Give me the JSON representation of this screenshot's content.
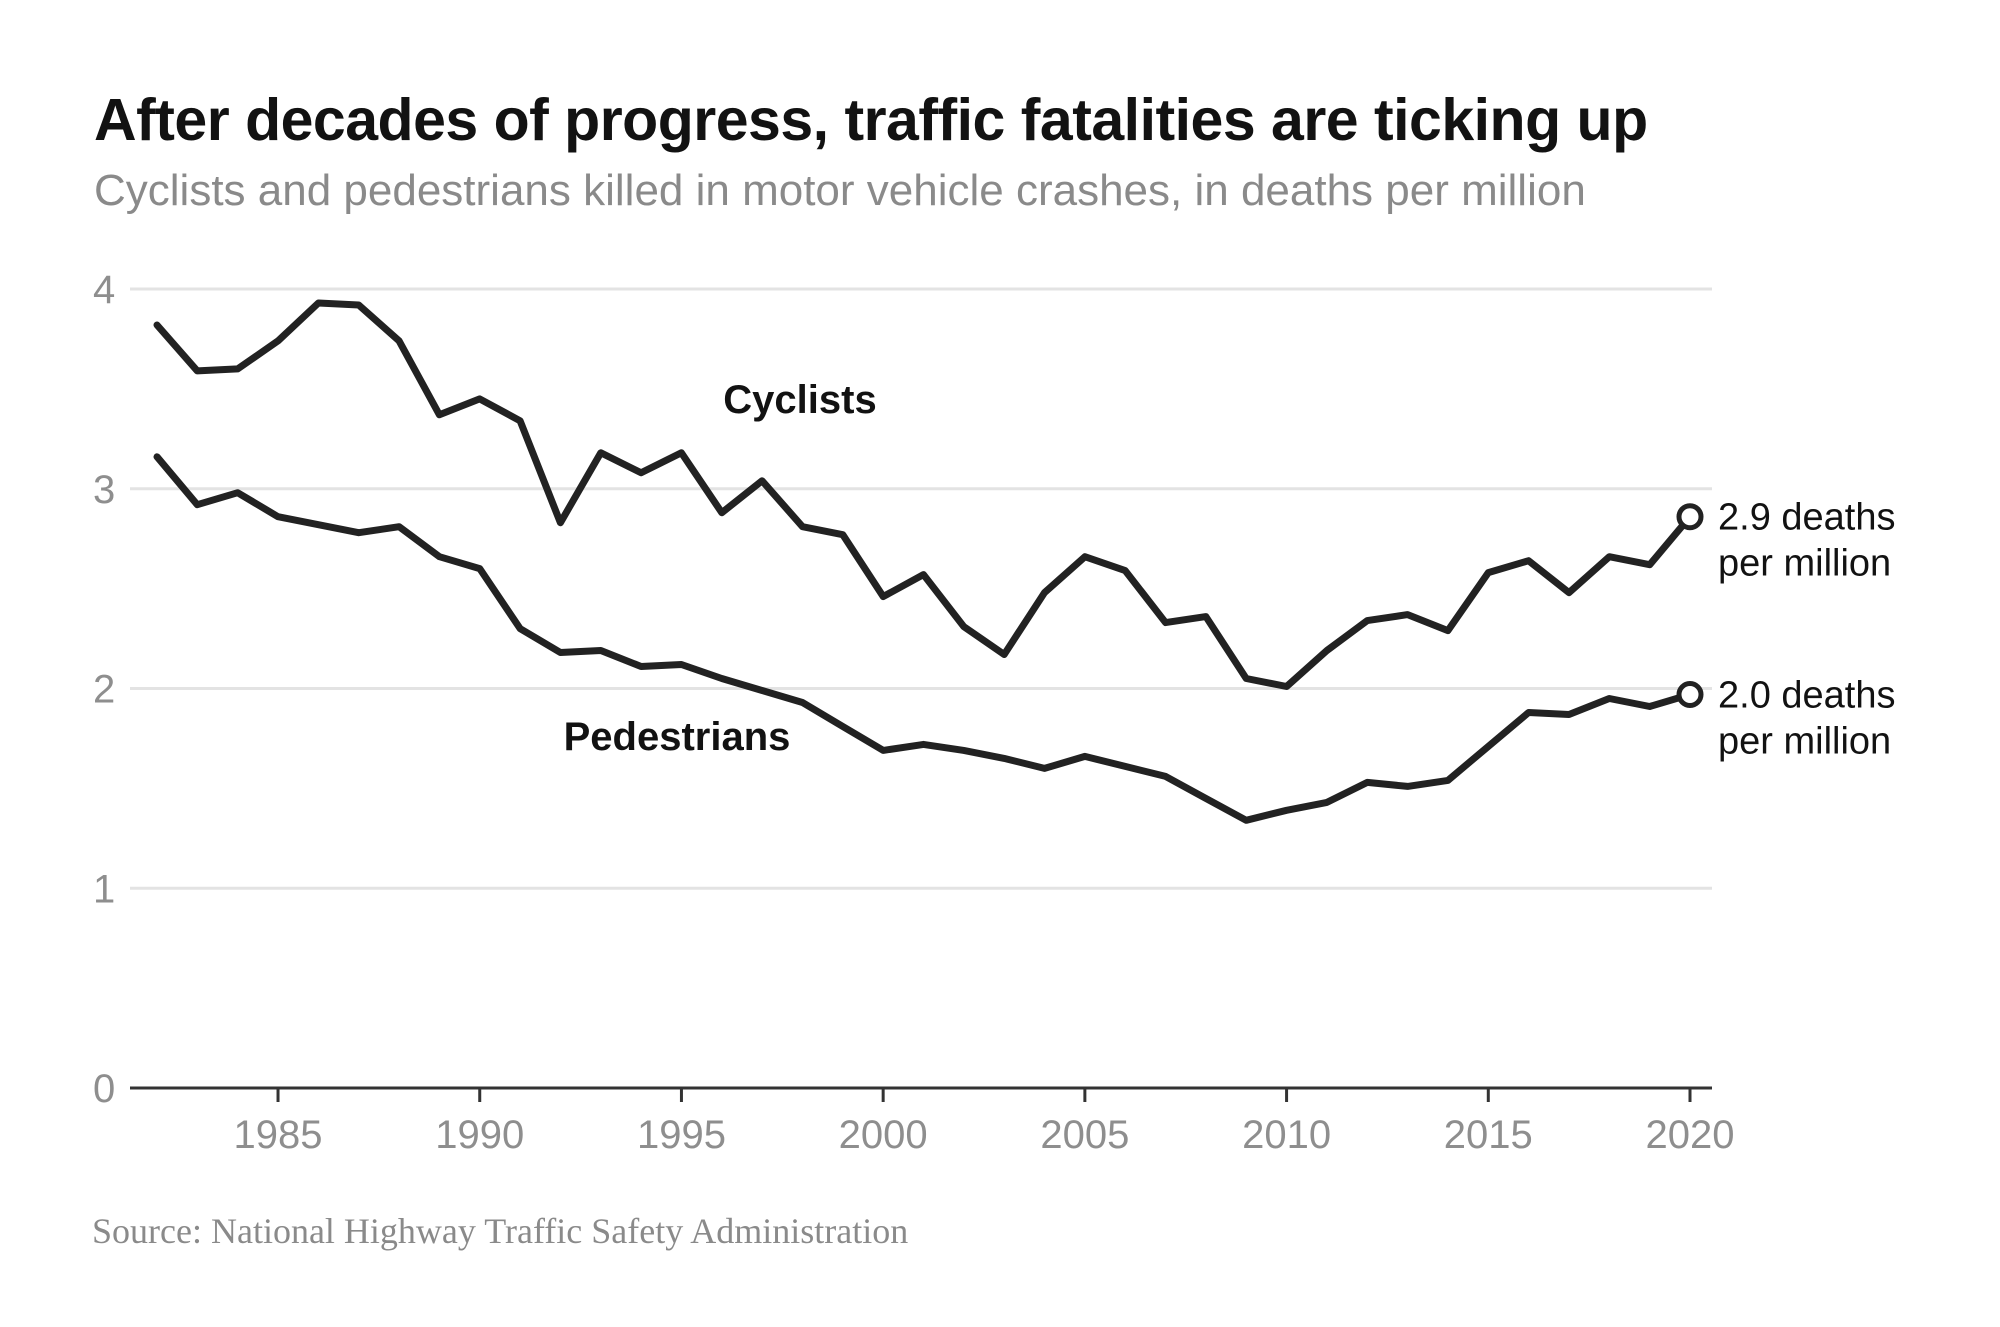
{
  "header": {
    "title": "After decades of progress, traffic fatalities are ticking up",
    "subtitle": "Cyclists and pedestrians killed in motor vehicle crashes, in deaths per million"
  },
  "footer": {
    "source": "Source: National Highway Traffic Safety Administration"
  },
  "colors": {
    "line": "#222222",
    "grid": "#e3e3e3",
    "axis": "#333333",
    "tick_text": "#8e8e8e"
  },
  "chart_data": {
    "type": "line",
    "title": "After decades of progress, traffic fatalities are ticking up",
    "subtitle": "Cyclists and pedestrians killed in motor vehicle crashes, in deaths per million",
    "xlabel": "",
    "ylabel": "",
    "xlim": [
      1982,
      2020
    ],
    "ylim": [
      0,
      4
    ],
    "grid": true,
    "x_ticks": [
      1985,
      1990,
      1995,
      2000,
      2005,
      2010,
      2015,
      2020
    ],
    "y_ticks": [
      0,
      1,
      2,
      3,
      4
    ],
    "x": [
      1982,
      1983,
      1984,
      1985,
      1986,
      1987,
      1988,
      1989,
      1990,
      1991,
      1992,
      1993,
      1994,
      1995,
      1996,
      1997,
      1998,
      1999,
      2000,
      2001,
      2002,
      2003,
      2004,
      2005,
      2006,
      2007,
      2008,
      2009,
      2010,
      2011,
      2012,
      2013,
      2014,
      2015,
      2016,
      2017,
      2018,
      2019,
      2020
    ],
    "series": [
      {
        "name": "Cyclists",
        "label": "Cyclists",
        "end_label": [
          "2.9 deaths",
          "per million"
        ],
        "values": [
          3.82,
          3.59,
          3.6,
          3.74,
          3.93,
          3.92,
          3.74,
          3.37,
          3.45,
          3.34,
          2.83,
          3.18,
          3.08,
          3.18,
          2.88,
          3.04,
          2.81,
          2.77,
          2.46,
          2.57,
          2.31,
          2.17,
          2.48,
          2.66,
          2.59,
          2.33,
          2.36,
          2.05,
          2.01,
          2.19,
          2.34,
          2.37,
          2.29,
          2.58,
          2.64,
          2.48,
          2.66,
          2.62,
          2.86
        ]
      },
      {
        "name": "Pedestrians",
        "label": "Pedestrians",
        "end_label": [
          "2.0 deaths",
          "per million"
        ],
        "values": [
          3.16,
          2.92,
          2.98,
          2.86,
          2.82,
          2.78,
          2.81,
          2.66,
          2.6,
          2.3,
          2.18,
          2.19,
          2.11,
          2.12,
          2.05,
          1.99,
          1.93,
          1.81,
          1.69,
          1.72,
          1.69,
          1.65,
          1.6,
          1.66,
          1.61,
          1.56,
          1.45,
          1.34,
          1.39,
          1.43,
          1.53,
          1.51,
          1.54,
          1.71,
          1.88,
          1.87,
          1.95,
          1.91,
          1.97
        ]
      }
    ]
  }
}
